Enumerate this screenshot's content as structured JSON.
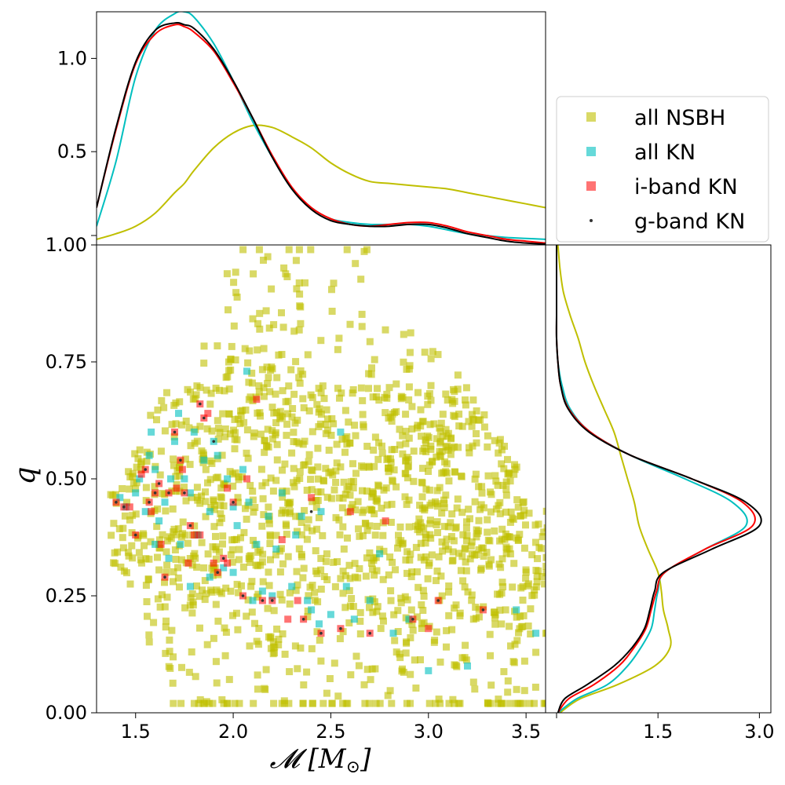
{
  "chart_data": {
    "type": "scatter",
    "description_layout": "corner plot: joint scatter of chirp mass vs mass ratio with marginal KDE curves on top and right",
    "xlabel": "𝓜 [M",
    "xlabel_sub": "⊙",
    "xlabel_close": "]",
    "ylabel": "q",
    "xlim": [
      1.3,
      3.6
    ],
    "ylim": [
      0.0,
      1.0
    ],
    "x_ticks": [
      1.5,
      2.0,
      2.5,
      3.0,
      3.5
    ],
    "x_tick_labels": [
      "1.5",
      "2.0",
      "2.5",
      "3.0",
      "3.5"
    ],
    "y_ticks": [
      0.0,
      0.25,
      0.5,
      0.75,
      1.0
    ],
    "y_tick_labels": [
      "0.00",
      "0.25",
      "0.50",
      "0.75",
      "1.00"
    ],
    "top_marginal": {
      "ylim": [
        0.0,
        1.25
      ],
      "y_ticks": [
        0.0,
        0.5,
        1.0
      ],
      "y_tick_labels": [
        "",
        "0.5",
        "1.0"
      ],
      "x": [
        1.3,
        1.4,
        1.5,
        1.6,
        1.7,
        1.75,
        1.8,
        1.9,
        2.0,
        2.1,
        2.2,
        2.3,
        2.4,
        2.5,
        2.6,
        2.7,
        2.8,
        2.9,
        3.0,
        3.1,
        3.2,
        3.3,
        3.4,
        3.5,
        3.6
      ],
      "series": [
        {
          "name": "all NSBH",
          "color": "#bfbf00",
          "values": [
            0.03,
            0.06,
            0.1,
            0.17,
            0.28,
            0.33,
            0.4,
            0.52,
            0.6,
            0.64,
            0.63,
            0.58,
            0.52,
            0.44,
            0.38,
            0.34,
            0.33,
            0.32,
            0.31,
            0.3,
            0.28,
            0.26,
            0.24,
            0.22,
            0.2
          ]
        },
        {
          "name": "all KN",
          "color": "#00bfbf",
          "values": [
            0.1,
            0.45,
            0.9,
            1.15,
            1.24,
            1.25,
            1.22,
            1.08,
            0.88,
            0.66,
            0.47,
            0.3,
            0.2,
            0.14,
            0.12,
            0.11,
            0.11,
            0.11,
            0.1,
            0.08,
            0.06,
            0.05,
            0.04,
            0.035,
            0.03
          ]
        },
        {
          "name": "i-band KN",
          "color": "#ff0000",
          "values": [
            0.2,
            0.62,
            0.97,
            1.13,
            1.18,
            1.17,
            1.14,
            1.04,
            0.87,
            0.68,
            0.48,
            0.31,
            0.2,
            0.14,
            0.11,
            0.1,
            0.11,
            0.12,
            0.12,
            0.1,
            0.07,
            0.05,
            0.03,
            0.02,
            0.01
          ]
        },
        {
          "name": "g-band KN",
          "color": "#000000",
          "values": [
            0.2,
            0.63,
            0.98,
            1.15,
            1.19,
            1.18,
            1.16,
            1.05,
            0.88,
            0.68,
            0.47,
            0.3,
            0.19,
            0.13,
            0.11,
            0.1,
            0.1,
            0.11,
            0.11,
            0.09,
            0.06,
            0.04,
            0.02,
            0.01,
            0.005
          ]
        }
      ]
    },
    "right_marginal": {
      "xlim": [
        0.0,
        3.1
      ],
      "x_ticks": [
        0.0,
        1.5,
        3.0
      ],
      "x_tick_labels": [
        "",
        "1.5",
        "3.0"
      ],
      "q": [
        0.0,
        0.03,
        0.06,
        0.1,
        0.14,
        0.18,
        0.22,
        0.26,
        0.3,
        0.35,
        0.4,
        0.45,
        0.5,
        0.55,
        0.6,
        0.65,
        0.7,
        0.75,
        0.8,
        0.85,
        0.9,
        0.95,
        1.0
      ],
      "series": [
        {
          "name": "all NSBH",
          "color": "#bfbf00",
          "values": [
            0.05,
            0.35,
            0.9,
            1.45,
            1.68,
            1.65,
            1.58,
            1.55,
            1.5,
            1.35,
            1.22,
            1.15,
            1.05,
            0.95,
            0.85,
            0.7,
            0.55,
            0.42,
            0.32,
            0.2,
            0.1,
            0.05,
            0.02
          ]
        },
        {
          "name": "all KN",
          "color": "#00bfbf",
          "values": [
            0.02,
            0.3,
            0.75,
            1.05,
            1.25,
            1.4,
            1.45,
            1.5,
            1.6,
            2.2,
            2.8,
            2.6,
            1.9,
            1.1,
            0.5,
            0.2,
            0.08,
            0.02,
            0.0,
            0.0,
            0.0,
            0.0,
            0.0
          ]
        },
        {
          "name": "i-band KN",
          "color": "#ff0000",
          "values": [
            0.02,
            0.18,
            0.55,
            0.92,
            1.15,
            1.32,
            1.4,
            1.48,
            1.6,
            2.2,
            2.9,
            2.75,
            2.0,
            1.1,
            0.5,
            0.18,
            0.06,
            0.02,
            0.0,
            0.0,
            0.0,
            0.0,
            0.0
          ]
        },
        {
          "name": "g-band KN",
          "color": "#000000",
          "values": [
            0.02,
            0.12,
            0.45,
            0.85,
            1.12,
            1.3,
            1.38,
            1.45,
            1.58,
            2.3,
            3.0,
            2.8,
            2.0,
            1.1,
            0.48,
            0.17,
            0.06,
            0.02,
            0.0,
            0.0,
            0.0,
            0.0,
            0.0
          ]
        }
      ]
    },
    "legend": {
      "position": "center-right",
      "entries": [
        {
          "label": "all NSBH",
          "color": "#bfbf00",
          "marker": "square"
        },
        {
          "label": "all KN",
          "color": "#00bfbf",
          "marker": "square"
        },
        {
          "label": "i-band KN",
          "color": "#ff0000",
          "marker": "square"
        },
        {
          "label": "g-band KN",
          "color": "#000000",
          "marker": "dot"
        }
      ]
    },
    "scatter_series": [
      {
        "name": "all NSBH",
        "color": "#bfbf00",
        "marker": "square",
        "approx_count": 1500
      },
      {
        "name": "all KN",
        "color": "#00bfbf",
        "marker": "square",
        "points": [
          [
            1.42,
            0.46
          ],
          [
            1.45,
            0.44
          ],
          [
            1.5,
            0.47
          ],
          [
            1.52,
            0.5
          ],
          [
            1.55,
            0.43
          ],
          [
            1.57,
            0.55
          ],
          [
            1.58,
            0.6
          ],
          [
            1.6,
            0.52
          ],
          [
            1.62,
            0.41
          ],
          [
            1.65,
            0.45
          ],
          [
            1.67,
            0.33
          ],
          [
            1.7,
            0.58
          ],
          [
            1.72,
            0.64
          ],
          [
            1.75,
            0.5
          ],
          [
            1.78,
            0.47
          ],
          [
            1.8,
            0.6
          ],
          [
            1.82,
            0.38
          ],
          [
            1.85,
            0.54
          ],
          [
            1.88,
            0.29
          ],
          [
            1.9,
            0.58
          ],
          [
            1.92,
            0.55
          ],
          [
            1.95,
            0.31
          ],
          [
            1.97,
            0.5
          ],
          [
            2.0,
            0.44
          ],
          [
            2.02,
            0.4
          ],
          [
            2.05,
            0.52
          ],
          [
            2.07,
            0.73
          ],
          [
            2.1,
            0.24
          ],
          [
            2.12,
            0.36
          ],
          [
            2.15,
            0.26
          ],
          [
            2.18,
            0.42
          ],
          [
            2.2,
            0.25
          ],
          [
            2.25,
            0.47
          ],
          [
            2.3,
            0.27
          ],
          [
            2.35,
            0.42
          ],
          [
            2.38,
            0.24
          ],
          [
            2.4,
            0.22
          ],
          [
            2.45,
            0.43
          ],
          [
            2.5,
            0.21
          ],
          [
            2.55,
            0.6
          ],
          [
            2.58,
            0.27
          ],
          [
            2.62,
            0.2
          ],
          [
            2.7,
            0.24
          ],
          [
            2.75,
            0.34
          ],
          [
            2.82,
            0.17
          ],
          [
            2.9,
            0.2
          ],
          [
            3.0,
            0.09
          ],
          [
            3.2,
            0.1
          ],
          [
            3.45,
            0.22
          ],
          [
            3.55,
            0.17
          ],
          [
            1.68,
            0.5
          ],
          [
            1.73,
            0.36
          ],
          [
            1.88,
            0.43
          ],
          [
            2.0,
            0.3
          ],
          [
            2.08,
            0.45
          ],
          [
            2.32,
            0.38
          ],
          [
            1.6,
            0.36
          ],
          [
            1.78,
            0.27
          ],
          [
            2.22,
            0.35
          ],
          [
            2.44,
            0.19
          ]
        ]
      },
      {
        "name": "i-band KN",
        "color": "#ff0000",
        "marker": "square",
        "points": [
          [
            1.4,
            0.45
          ],
          [
            1.44,
            0.44
          ],
          [
            1.47,
            0.44
          ],
          [
            1.5,
            0.38
          ],
          [
            1.53,
            0.51
          ],
          [
            1.55,
            0.52
          ],
          [
            1.57,
            0.45
          ],
          [
            1.58,
            0.43
          ],
          [
            1.6,
            0.47
          ],
          [
            1.62,
            0.49
          ],
          [
            1.63,
            0.36
          ],
          [
            1.65,
            0.29
          ],
          [
            1.67,
            0.47
          ],
          [
            1.7,
            0.6
          ],
          [
            1.71,
            0.48
          ],
          [
            1.73,
            0.54
          ],
          [
            1.74,
            0.52
          ],
          [
            1.75,
            0.47
          ],
          [
            1.77,
            0.32
          ],
          [
            1.78,
            0.4
          ],
          [
            1.8,
            0.38
          ],
          [
            1.83,
            0.66
          ],
          [
            1.85,
            0.63
          ],
          [
            1.87,
            0.64
          ],
          [
            1.9,
            0.32
          ],
          [
            1.92,
            0.3
          ],
          [
            1.95,
            0.33
          ],
          [
            1.97,
            0.32
          ],
          [
            2.0,
            0.45
          ],
          [
            2.05,
            0.25
          ],
          [
            2.07,
            0.5
          ],
          [
            2.12,
            0.67
          ],
          [
            2.15,
            0.24
          ],
          [
            2.2,
            0.24
          ],
          [
            2.25,
            0.37
          ],
          [
            2.28,
            0.2
          ],
          [
            2.33,
            0.24
          ],
          [
            2.36,
            0.2
          ],
          [
            2.4,
            0.46
          ],
          [
            2.45,
            0.17
          ],
          [
            2.55,
            0.18
          ],
          [
            2.6,
            0.43
          ],
          [
            2.7,
            0.17
          ],
          [
            2.78,
            0.41
          ],
          [
            2.92,
            0.2
          ],
          [
            3.0,
            0.18
          ],
          [
            3.05,
            0.24
          ],
          [
            3.28,
            0.22
          ],
          [
            1.83,
            0.38
          ],
          [
            1.97,
            0.48
          ]
        ]
      },
      {
        "name": "g-band KN",
        "color": "#000000",
        "marker": "dot",
        "points": [
          [
            1.4,
            0.45
          ],
          [
            1.44,
            0.44
          ],
          [
            1.5,
            0.38
          ],
          [
            1.55,
            0.52
          ],
          [
            1.57,
            0.45
          ],
          [
            1.6,
            0.47
          ],
          [
            1.62,
            0.49
          ],
          [
            1.65,
            0.29
          ],
          [
            1.67,
            0.47
          ],
          [
            1.7,
            0.6
          ],
          [
            1.73,
            0.54
          ],
          [
            1.75,
            0.47
          ],
          [
            1.78,
            0.4
          ],
          [
            1.83,
            0.66
          ],
          [
            1.85,
            0.63
          ],
          [
            1.9,
            0.58
          ],
          [
            1.92,
            0.3
          ],
          [
            1.95,
            0.33
          ],
          [
            2.0,
            0.45
          ],
          [
            2.05,
            0.25
          ],
          [
            2.15,
            0.24
          ],
          [
            2.2,
            0.24
          ],
          [
            2.36,
            0.2
          ],
          [
            2.4,
            0.43
          ],
          [
            2.45,
            0.17
          ],
          [
            2.55,
            0.18
          ],
          [
            2.7,
            0.17
          ],
          [
            2.92,
            0.2
          ],
          [
            3.05,
            0.24
          ],
          [
            3.28,
            0.22
          ]
        ]
      }
    ]
  }
}
